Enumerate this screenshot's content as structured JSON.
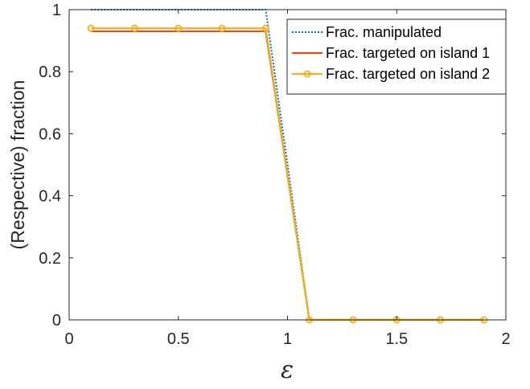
{
  "chart_data": {
    "type": "line",
    "title": "",
    "xlabel": "ε",
    "ylabel": "(Respective) fraction",
    "xlim": [
      0,
      2
    ],
    "ylim": [
      0,
      1
    ],
    "xticks": [
      "0",
      "0.5",
      "1",
      "1.5",
      "2"
    ],
    "yticks": [
      "0",
      "0.2",
      "0.4",
      "0.6",
      "0.8",
      "1"
    ],
    "grid": false,
    "legend_position": "top-right",
    "series": [
      {
        "name": "Frac. manipulated",
        "color": "#0072BD",
        "style": "dotted",
        "marker": "none",
        "x": [
          0.1,
          0.3,
          0.5,
          0.7,
          0.9,
          1.1,
          1.3,
          1.5,
          1.7,
          1.9
        ],
        "y": [
          1,
          1,
          1,
          1,
          1,
          0,
          0,
          0,
          0,
          0
        ]
      },
      {
        "name": "Frac. targeted on island 1",
        "color": "#D95319",
        "style": "solid",
        "marker": "none",
        "x": [
          0.1,
          0.3,
          0.5,
          0.7,
          0.9,
          1.1,
          1.3,
          1.5,
          1.7,
          1.9
        ],
        "y": [
          0.93,
          0.93,
          0.93,
          0.93,
          0.93,
          0,
          0,
          0,
          0,
          0
        ]
      },
      {
        "name": "Frac. targeted on island 2",
        "color": "#EDB120",
        "style": "solid",
        "marker": "circle",
        "x": [
          0.1,
          0.3,
          0.5,
          0.7,
          0.9,
          1.1,
          1.3,
          1.5,
          1.7,
          1.9
        ],
        "y": [
          0.94,
          0.94,
          0.94,
          0.94,
          0.94,
          0,
          0,
          0,
          0,
          0
        ]
      }
    ]
  }
}
